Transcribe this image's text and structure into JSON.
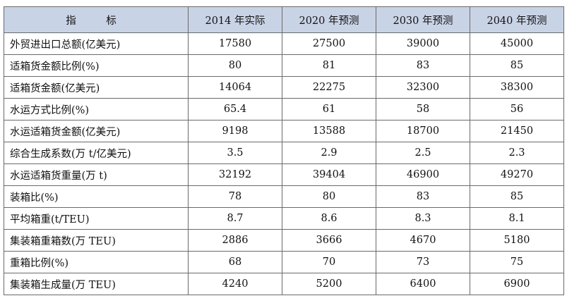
{
  "table": {
    "columns": [
      "指　标",
      "2014 年实际",
      "2020 年预测",
      "2030 年预测",
      "2040 年预测"
    ],
    "rows": [
      {
        "label": "外贸进出口总额(亿美元)",
        "values": [
          "17580",
          "27500",
          "39000",
          "45000"
        ]
      },
      {
        "label": "适箱货金额比例(%)",
        "values": [
          "80",
          "81",
          "83",
          "85"
        ]
      },
      {
        "label": "适箱货金额(亿美元)",
        "values": [
          "14064",
          "22275",
          "32300",
          "38300"
        ]
      },
      {
        "label": "水运方式比例(%)",
        "values": [
          "65.4",
          "61",
          "58",
          "56"
        ]
      },
      {
        "label": "水运适箱货金额(亿美元)",
        "values": [
          "9198",
          "13588",
          "18700",
          "21450"
        ]
      },
      {
        "label": "综合生成系数(万 t/亿美元)",
        "values": [
          "3.5",
          "2.9",
          "2.5",
          "2.3"
        ]
      },
      {
        "label": "水运适箱货重量(万 t)",
        "values": [
          "32192",
          "39404",
          "46900",
          "49270"
        ]
      },
      {
        "label": "装箱比(%)",
        "values": [
          "78",
          "80",
          "83",
          "85"
        ]
      },
      {
        "label": "平均箱重(t/TEU)",
        "values": [
          "8.7",
          "8.6",
          "8.3",
          "8.1"
        ]
      },
      {
        "label": "集装箱重箱数(万 TEU)",
        "values": [
          "2886",
          "3666",
          "4670",
          "5180"
        ]
      },
      {
        "label": "重箱比例(%)",
        "values": [
          "68",
          "70",
          "73",
          "75"
        ]
      },
      {
        "label": "集装箱生成量(万 TEU)",
        "values": [
          "4240",
          "5200",
          "6400",
          "6900"
        ]
      }
    ]
  }
}
